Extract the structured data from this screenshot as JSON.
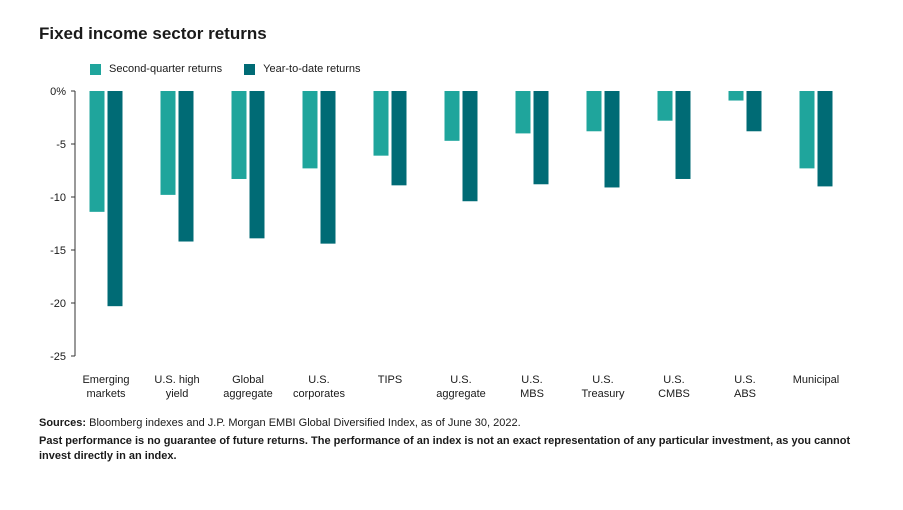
{
  "chart_title": "Fixed income sector returns",
  "colors": {
    "q2": "#1fa59c",
    "ytd": "#006b75",
    "axis": "#333333"
  },
  "legend": [
    {
      "label": "Second-quarter returns",
      "color": "#1fa59c"
    },
    {
      "label": "Year-to-date returns",
      "color": "#006b75"
    }
  ],
  "chart_data": {
    "type": "bar",
    "title": "Fixed income sector returns",
    "categories": [
      [
        "Emerging",
        "markets"
      ],
      [
        "U.S. high",
        "yield"
      ],
      [
        "Global",
        "aggregate"
      ],
      [
        "U.S.",
        "corporates"
      ],
      [
        "TIPS"
      ],
      [
        "U.S.",
        "aggregate"
      ],
      [
        "U.S.",
        "MBS"
      ],
      [
        "U.S.",
        "Treasury"
      ],
      [
        "U.S.",
        "CMBS"
      ],
      [
        "U.S.",
        "ABS"
      ],
      [
        "Municipal"
      ]
    ],
    "series": [
      {
        "name": "Second-quarter returns",
        "values": [
          -11.4,
          -9.8,
          -8.3,
          -7.3,
          -6.1,
          -4.7,
          -4.0,
          -3.8,
          -2.8,
          -0.9,
          -7.3
        ]
      },
      {
        "name": "Year-to-date returns",
        "values": [
          -20.3,
          -14.2,
          -13.9,
          -14.4,
          -8.9,
          -10.4,
          -8.8,
          -9.1,
          -8.3,
          -3.8,
          -9.0
        ]
      }
    ],
    "yticks": [
      "0%",
      "-5",
      "-10",
      "-15",
      "-20",
      "-25"
    ],
    "ytick_values": [
      0,
      -5,
      -10,
      -15,
      -20,
      -25
    ],
    "ylim": [
      -25,
      0
    ],
    "grid": false,
    "legend_position": "top-left"
  },
  "notes": {
    "sources_label": "Sources:",
    "sources_text": " Bloomberg indexes and J.P. Morgan EMBI Global Diversified Index, as of June 30, 2022.",
    "disclaimer": "Past performance is no guarantee of future returns. The performance of an index is not an exact representation of any particular investment, as you cannot invest directly in an index."
  }
}
